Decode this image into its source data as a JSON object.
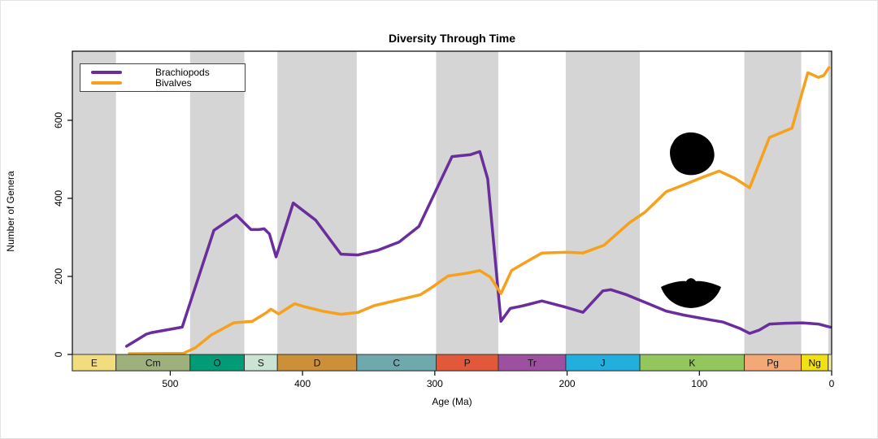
{
  "title": "Diversity Through Time",
  "chart_data": {
    "type": "line",
    "title": "Diversity Through Time",
    "xlabel": "Age (Ma)",
    "ylabel": "Number of Genera",
    "x_axis_reversed": true,
    "xlim": [
      574,
      0
    ],
    "ylim": [
      0,
      777
    ],
    "x_ticks": [
      500,
      400,
      300,
      200,
      100,
      0
    ],
    "y_ticks": [
      0,
      200,
      400,
      600
    ],
    "grid": false,
    "legend_position": "top-left",
    "shaded_band_color": "#D5D5D5",
    "series": [
      {
        "name": "Brachiopods",
        "color": "#6A2D9C",
        "points": [
          [
            533,
            21
          ],
          [
            518,
            52
          ],
          [
            514,
            56
          ],
          [
            491,
            70
          ],
          [
            467,
            318
          ],
          [
            450,
            357
          ],
          [
            439,
            320
          ],
          [
            433,
            320
          ],
          [
            429,
            322
          ],
          [
            425,
            309
          ],
          [
            420,
            250
          ],
          [
            407,
            388
          ],
          [
            390,
            344
          ],
          [
            371,
            257
          ],
          [
            358,
            255
          ],
          [
            343,
            267
          ],
          [
            327,
            288
          ],
          [
            312,
            328
          ],
          [
            287,
            507
          ],
          [
            273,
            512
          ],
          [
            266,
            520
          ],
          [
            260,
            450
          ],
          [
            250,
            85
          ],
          [
            243,
            118
          ],
          [
            233,
            125
          ],
          [
            219,
            137
          ],
          [
            202,
            122
          ],
          [
            188,
            108
          ],
          [
            173,
            163
          ],
          [
            167,
            166
          ],
          [
            155,
            153
          ],
          [
            137,
            128
          ],
          [
            125,
            111
          ],
          [
            112,
            101
          ],
          [
            94,
            90
          ],
          [
            82,
            83
          ],
          [
            69,
            66
          ],
          [
            62,
            54
          ],
          [
            55,
            62
          ],
          [
            47,
            78
          ],
          [
            35,
            80
          ],
          [
            22,
            81
          ],
          [
            10,
            78
          ],
          [
            1,
            70
          ]
        ]
      },
      {
        "name": "Bivalves",
        "color": "#F6A01B",
        "points": [
          [
            531,
            2
          ],
          [
            490,
            3
          ],
          [
            481,
            17
          ],
          [
            469,
            50
          ],
          [
            452,
            81
          ],
          [
            438,
            85
          ],
          [
            427,
            108
          ],
          [
            424,
            116
          ],
          [
            418,
            104
          ],
          [
            406,
            130
          ],
          [
            399,
            123
          ],
          [
            385,
            111
          ],
          [
            371,
            103
          ],
          [
            358,
            108
          ],
          [
            346,
            125
          ],
          [
            311,
            153
          ],
          [
            303,
            170
          ],
          [
            290,
            201
          ],
          [
            276,
            208
          ],
          [
            266,
            215
          ],
          [
            258,
            198
          ],
          [
            250,
            156
          ],
          [
            242,
            215
          ],
          [
            233,
            233
          ],
          [
            219,
            260
          ],
          [
            200,
            262
          ],
          [
            188,
            260
          ],
          [
            172,
            280
          ],
          [
            153,
            337
          ],
          [
            141,
            365
          ],
          [
            125,
            417
          ],
          [
            110,
            437
          ],
          [
            97,
            455
          ],
          [
            85,
            470
          ],
          [
            73,
            451
          ],
          [
            62,
            427
          ],
          [
            47,
            556
          ],
          [
            30,
            580
          ],
          [
            18,
            722
          ],
          [
            10,
            710
          ],
          [
            6,
            715
          ],
          [
            2,
            735
          ]
        ]
      }
    ],
    "geologic_periods": [
      {
        "label": "E",
        "from": 574,
        "to": 541,
        "color": "#F1DC7E",
        "shaded": true
      },
      {
        "label": "Cm",
        "from": 541,
        "to": 485,
        "color": "#9EB07C",
        "shaded": false
      },
      {
        "label": "O",
        "from": 485,
        "to": 444,
        "color": "#009C76",
        "shaded": true
      },
      {
        "label": "S",
        "from": 444,
        "to": 419,
        "color": "#CBE3D2",
        "shaded": false
      },
      {
        "label": "D",
        "from": 419,
        "to": 359,
        "color": "#CC9038",
        "shaded": true
      },
      {
        "label": "C",
        "from": 359,
        "to": 299,
        "color": "#6FA9AD",
        "shaded": false
      },
      {
        "label": "P",
        "from": 299,
        "to": 252,
        "color": "#E2583B",
        "shaded": true
      },
      {
        "label": "Tr",
        "from": 252,
        "to": 201,
        "color": "#9D4FA0",
        "shaded": false
      },
      {
        "label": "J",
        "from": 201,
        "to": 145,
        "color": "#23AFDE",
        "shaded": true
      },
      {
        "label": "K",
        "from": 145,
        "to": 66,
        "color": "#93C75D",
        "shaded": false
      },
      {
        "label": "Pg",
        "from": 66,
        "to": 23,
        "color": "#F4A876",
        "shaded": true
      },
      {
        "label": "Ng",
        "from": 23,
        "to": 2.6,
        "color": "#F2E112",
        "shaded": false
      },
      {
        "label": "",
        "from": 2.6,
        "to": 0,
        "color": "#F4EFA2",
        "shaded": true
      }
    ]
  }
}
